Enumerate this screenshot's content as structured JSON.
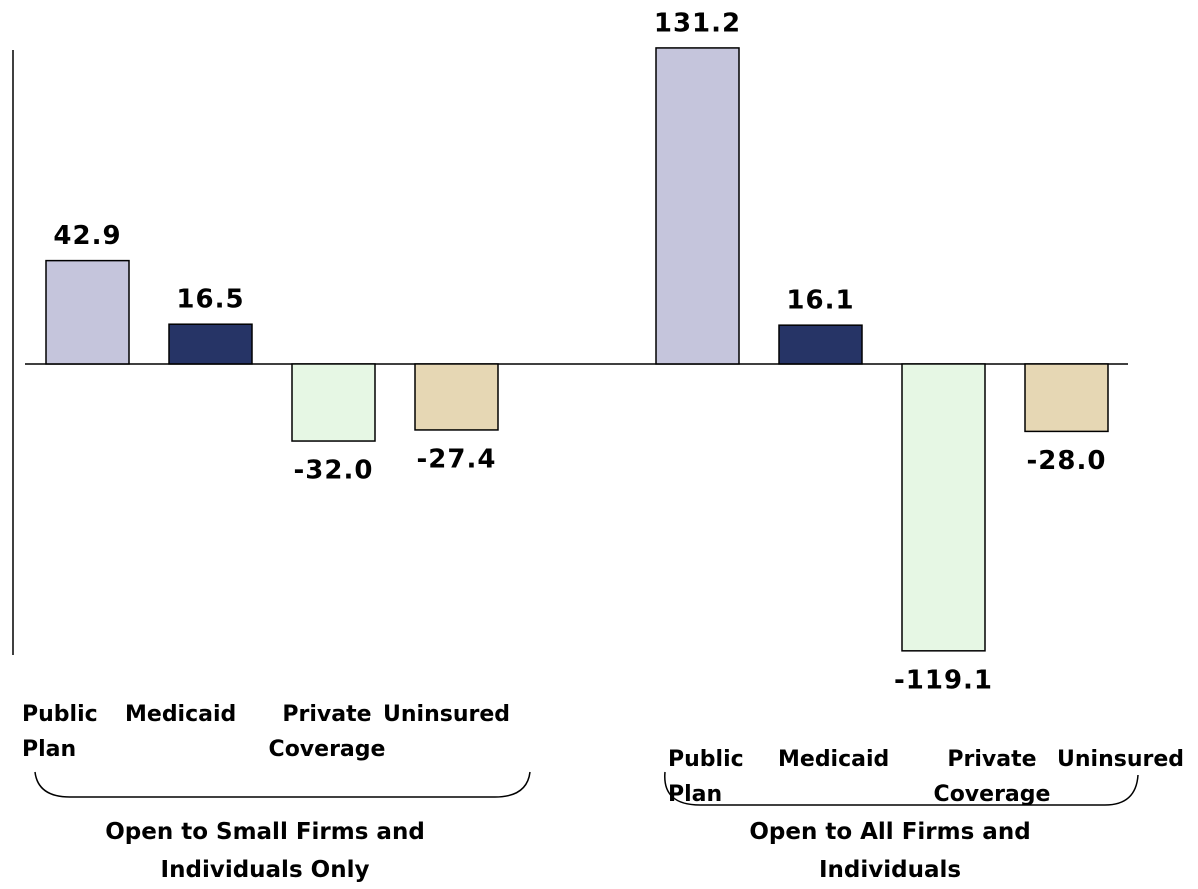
{
  "chart_data": {
    "type": "bar",
    "groups": [
      "Open to Small Firms and Individuals Only",
      "Open to All Firms and Individuals"
    ],
    "series": [
      {
        "name": "Public Plan",
        "color": "#c5c5dc",
        "values": [
          42.9,
          131.2
        ],
        "value_labels": [
          "42.9",
          "131.2"
        ]
      },
      {
        "name": "Medicaid",
        "color": "#263466",
        "values": [
          16.5,
          16.1
        ],
        "value_labels": [
          "16.5",
          "16.1"
        ]
      },
      {
        "name": "Private Coverage",
        "color": "#e6f7e4",
        "values": [
          -32.0,
          -119.1
        ],
        "value_labels": [
          "-32.0",
          "-119.1"
        ]
      },
      {
        "name": "Uninsured",
        "color": "#e6d7b4",
        "values": [
          -27.4,
          -28.0
        ],
        "value_labels": [
          "-27.4",
          "-28.0"
        ]
      }
    ],
    "ylim": [
      -120,
      132
    ]
  }
}
